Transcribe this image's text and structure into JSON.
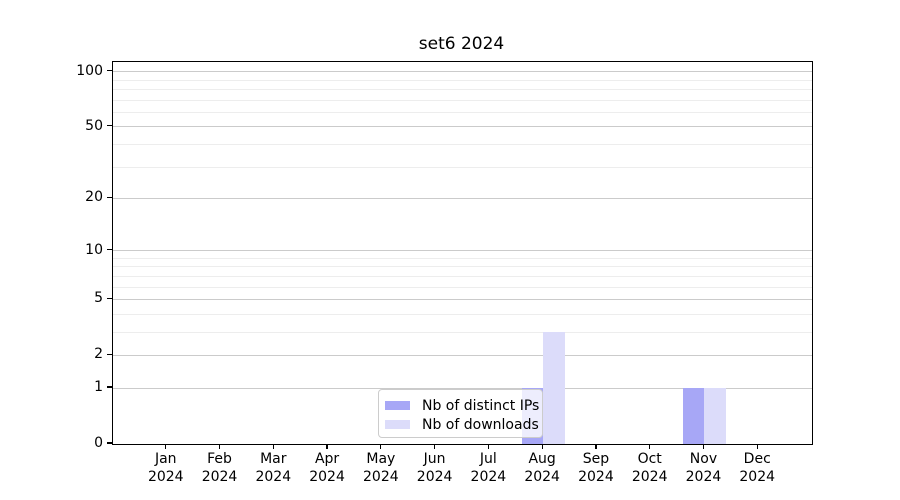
{
  "title": "set6 2024",
  "chart_data": {
    "type": "bar",
    "title": "set6 2024",
    "months": [
      "Jan",
      "Feb",
      "Mar",
      "Apr",
      "May",
      "Jun",
      "Jul",
      "Aug",
      "Sep",
      "Oct",
      "Nov",
      "Dec"
    ],
    "year": "2024",
    "series": [
      {
        "name": "Nb of distinct IPs",
        "color": "#a7a7f6",
        "values": [
          0,
          0,
          0,
          0,
          0,
          0,
          0,
          1,
          0,
          0,
          1,
          0
        ]
      },
      {
        "name": "Nb of downloads",
        "color": "#dcdcfa",
        "values": [
          0,
          0,
          0,
          0,
          0,
          0,
          0,
          3,
          0,
          0,
          1,
          0
        ]
      }
    ],
    "yscale": "log1p",
    "ylim": [
      0,
      113
    ],
    "yticks": [
      0,
      1,
      2,
      5,
      10,
      20,
      50,
      100
    ],
    "yticks_minor": [
      3,
      4,
      6,
      7,
      8,
      9,
      30,
      40,
      60,
      70,
      80,
      90
    ],
    "grid": true,
    "legend_position": "lower center",
    "colors": {
      "major_grid": "#cbcbcb",
      "minor_grid": "#ededed",
      "axis": "#000000",
      "background": "#ffffff"
    }
  }
}
